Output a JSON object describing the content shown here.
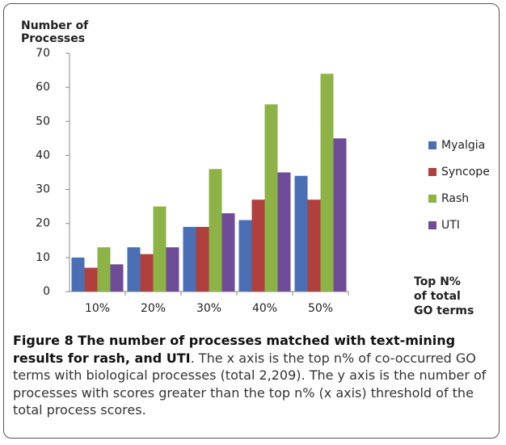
{
  "chart_data": {
    "type": "bar",
    "y_label_lines": [
      "Number of",
      "Processes"
    ],
    "x_label_lines": [
      "Top N%",
      "of total",
      "GO terms"
    ],
    "categories": [
      "10%",
      "20%",
      "30%",
      "40%",
      "50%"
    ],
    "series": [
      {
        "name": "Myalgia",
        "color": "#4a6fb5",
        "values": [
          10,
          13,
          19,
          21,
          34
        ]
      },
      {
        "name": "Syncope",
        "color": "#b0403d",
        "values": [
          7,
          11,
          19,
          27,
          27
        ]
      },
      {
        "name": "Rash",
        "color": "#8db346",
        "values": [
          13,
          25,
          36,
          55,
          64
        ]
      },
      {
        "name": "UTI",
        "color": "#6e4c98",
        "values": [
          8,
          13,
          23,
          35,
          45
        ]
      }
    ],
    "ylim": [
      0,
      70
    ],
    "yticks": [
      0,
      10,
      20,
      30,
      40,
      50,
      60,
      70
    ],
    "grid": false,
    "legend": "right"
  },
  "caption": {
    "title": "Figure 8 The number of processes matched with text-mining results for rash, and UTI",
    "text": ". The x axis is the top n% of co-occurred GO terms with biological processes (total 2,209). The y axis is the number of processes with scores greater than the top n% (x axis) threshold of the total process scores."
  }
}
